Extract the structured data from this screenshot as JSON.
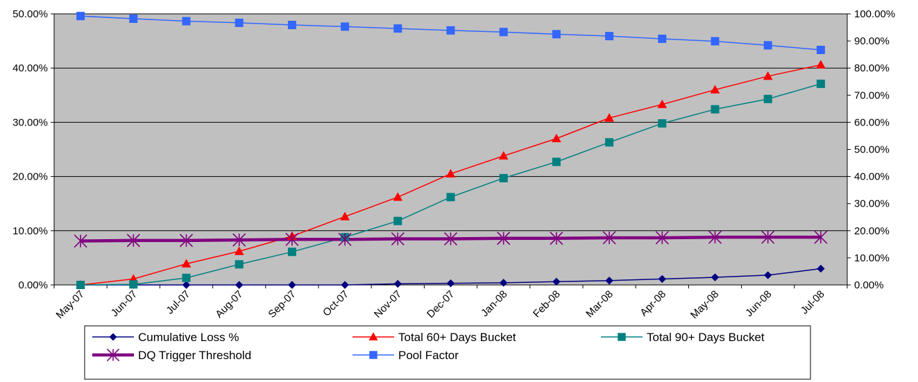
{
  "chart_data": {
    "type": "line",
    "title": "",
    "xlabel": "",
    "ylabel": "",
    "categories": [
      "May-07",
      "Jun-07",
      "Jul-07",
      "Aug-07",
      "Sep-07",
      "Oct-07",
      "Nov-07",
      "Dec-07",
      "Jan-08",
      "Feb-08",
      "Mar-08",
      "Apr-08",
      "May-08",
      "Jun-08",
      "Jul-08"
    ],
    "ylim": [
      0,
      0.5
    ],
    "y2lim": [
      0,
      1.0
    ],
    "y_ticks": [
      "0.00%",
      "10.00%",
      "20.00%",
      "30.00%",
      "40.00%",
      "50.00%"
    ],
    "y2_ticks": [
      "0.00%",
      "10.00%",
      "20.00%",
      "30.00%",
      "40.00%",
      "50.00%",
      "60.00%",
      "70.00%",
      "80.00%",
      "90.00%",
      "100.00%"
    ],
    "grid": "horizontal",
    "plot_background": "#c0c0c0",
    "legend_placement": "bottom",
    "series": [
      {
        "name": "Cumulative Loss %",
        "axis": "left",
        "color": "#000080",
        "marker": "diamond",
        "width": 1.5,
        "values": [
          0.0,
          0.0,
          0.0,
          0.0,
          0.0,
          0.0,
          0.002,
          0.003,
          0.004,
          0.006,
          0.008,
          0.011,
          0.014,
          0.018,
          0.03
        ]
      },
      {
        "name": "Total 60+ Days Bucket",
        "axis": "left",
        "color": "#ff0000",
        "marker": "triangle",
        "width": 1.5,
        "values": [
          0.0,
          0.011,
          0.039,
          0.062,
          0.09,
          0.126,
          0.162,
          0.205,
          0.238,
          0.27,
          0.308,
          0.333,
          0.36,
          0.385,
          0.406
        ]
      },
      {
        "name": "Total 90+ Days Bucket",
        "axis": "left",
        "color": "#008080",
        "marker": "square",
        "width": 1.5,
        "values": [
          0.0,
          0.001,
          0.013,
          0.038,
          0.061,
          0.088,
          0.118,
          0.162,
          0.197,
          0.227,
          0.263,
          0.298,
          0.324,
          0.343,
          0.371
        ]
      },
      {
        "name": "DQ Trigger Threshold",
        "axis": "left",
        "color": "#800080",
        "marker": "asterisk",
        "width": 4.5,
        "values": [
          0.081,
          0.082,
          0.082,
          0.083,
          0.084,
          0.084,
          0.085,
          0.085,
          0.086,
          0.086,
          0.087,
          0.087,
          0.088,
          0.088,
          0.088
        ]
      },
      {
        "name": "Pool Factor",
        "axis": "right",
        "color": "#3366ff",
        "marker": "square",
        "width": 1.5,
        "values": [
          0.992,
          0.982,
          0.973,
          0.967,
          0.959,
          0.953,
          0.946,
          0.939,
          0.933,
          0.925,
          0.918,
          0.908,
          0.899,
          0.884,
          0.867
        ]
      }
    ],
    "legend": [
      {
        "label": "Cumulative Loss %"
      },
      {
        "label": "Total 60+ Days Bucket"
      },
      {
        "label": "Total 90+ Days Bucket"
      },
      {
        "label": "DQ Trigger Threshold"
      },
      {
        "label": "Pool Factor"
      }
    ]
  }
}
